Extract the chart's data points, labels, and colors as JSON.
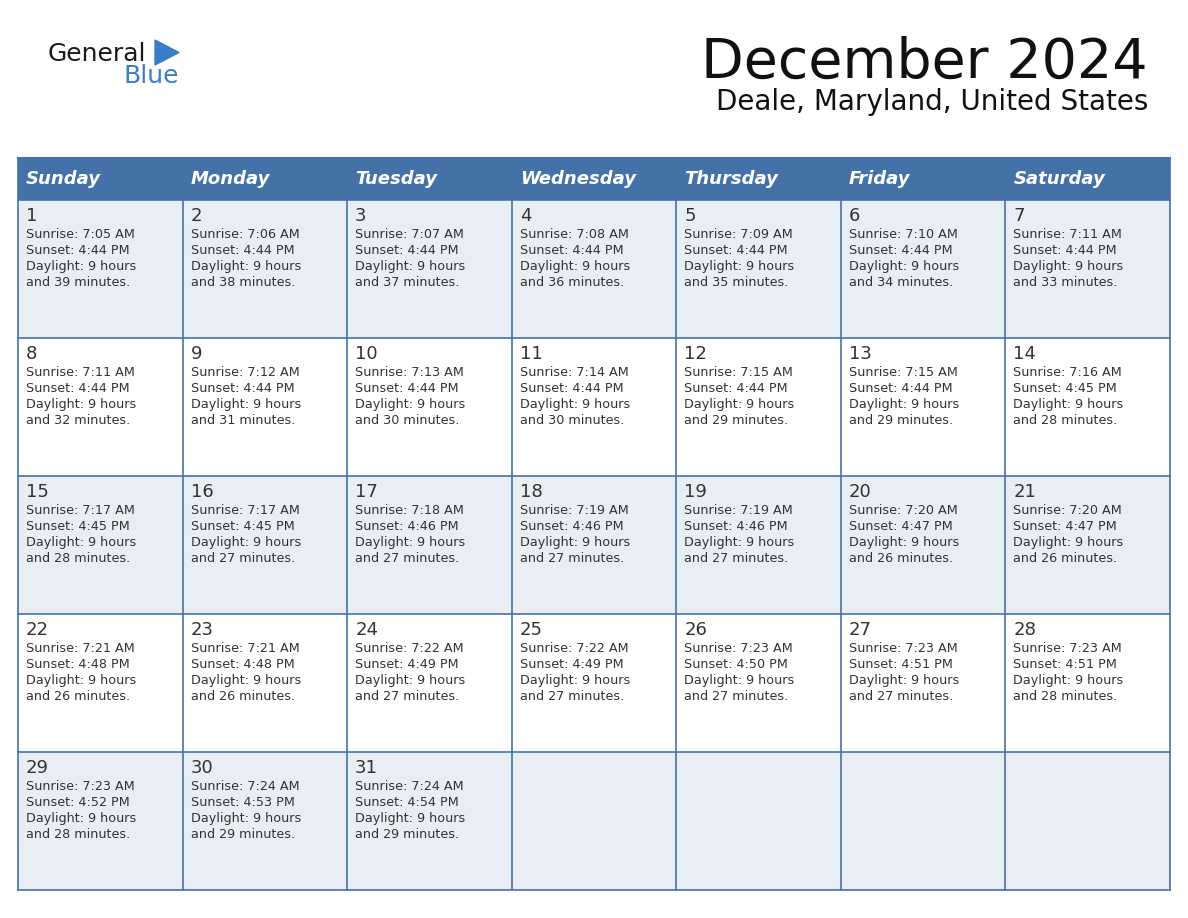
{
  "title": "December 2024",
  "subtitle": "Deale, Maryland, United States",
  "header_bg_color": "#4472a8",
  "header_text_color": "#ffffff",
  "row_bg_color_odd": "#e8eef4",
  "row_bg_color_even": "#ffffff",
  "cell_text_color": "#333333",
  "day_number_color": "#333333",
  "grid_line_color": "#4472a8",
  "days_of_week": [
    "Sunday",
    "Monday",
    "Tuesday",
    "Wednesday",
    "Thursday",
    "Friday",
    "Saturday"
  ],
  "weeks": [
    [
      {
        "day": "1",
        "sunrise": "7:05 AM",
        "sunset": "4:44 PM",
        "daylight_line1": "9 hours",
        "daylight_line2": "and 39 minutes."
      },
      {
        "day": "2",
        "sunrise": "7:06 AM",
        "sunset": "4:44 PM",
        "daylight_line1": "9 hours",
        "daylight_line2": "and 38 minutes."
      },
      {
        "day": "3",
        "sunrise": "7:07 AM",
        "sunset": "4:44 PM",
        "daylight_line1": "9 hours",
        "daylight_line2": "and 37 minutes."
      },
      {
        "day": "4",
        "sunrise": "7:08 AM",
        "sunset": "4:44 PM",
        "daylight_line1": "9 hours",
        "daylight_line2": "and 36 minutes."
      },
      {
        "day": "5",
        "sunrise": "7:09 AM",
        "sunset": "4:44 PM",
        "daylight_line1": "9 hours",
        "daylight_line2": "and 35 minutes."
      },
      {
        "day": "6",
        "sunrise": "7:10 AM",
        "sunset": "4:44 PM",
        "daylight_line1": "9 hours",
        "daylight_line2": "and 34 minutes."
      },
      {
        "day": "7",
        "sunrise": "7:11 AM",
        "sunset": "4:44 PM",
        "daylight_line1": "9 hours",
        "daylight_line2": "and 33 minutes."
      }
    ],
    [
      {
        "day": "8",
        "sunrise": "7:11 AM",
        "sunset": "4:44 PM",
        "daylight_line1": "9 hours",
        "daylight_line2": "and 32 minutes."
      },
      {
        "day": "9",
        "sunrise": "7:12 AM",
        "sunset": "4:44 PM",
        "daylight_line1": "9 hours",
        "daylight_line2": "and 31 minutes."
      },
      {
        "day": "10",
        "sunrise": "7:13 AM",
        "sunset": "4:44 PM",
        "daylight_line1": "9 hours",
        "daylight_line2": "and 30 minutes."
      },
      {
        "day": "11",
        "sunrise": "7:14 AM",
        "sunset": "4:44 PM",
        "daylight_line1": "9 hours",
        "daylight_line2": "and 30 minutes."
      },
      {
        "day": "12",
        "sunrise": "7:15 AM",
        "sunset": "4:44 PM",
        "daylight_line1": "9 hours",
        "daylight_line2": "and 29 minutes."
      },
      {
        "day": "13",
        "sunrise": "7:15 AM",
        "sunset": "4:44 PM",
        "daylight_line1": "9 hours",
        "daylight_line2": "and 29 minutes."
      },
      {
        "day": "14",
        "sunrise": "7:16 AM",
        "sunset": "4:45 PM",
        "daylight_line1": "9 hours",
        "daylight_line2": "and 28 minutes."
      }
    ],
    [
      {
        "day": "15",
        "sunrise": "7:17 AM",
        "sunset": "4:45 PM",
        "daylight_line1": "9 hours",
        "daylight_line2": "and 28 minutes."
      },
      {
        "day": "16",
        "sunrise": "7:17 AM",
        "sunset": "4:45 PM",
        "daylight_line1": "9 hours",
        "daylight_line2": "and 27 minutes."
      },
      {
        "day": "17",
        "sunrise": "7:18 AM",
        "sunset": "4:46 PM",
        "daylight_line1": "9 hours",
        "daylight_line2": "and 27 minutes."
      },
      {
        "day": "18",
        "sunrise": "7:19 AM",
        "sunset": "4:46 PM",
        "daylight_line1": "9 hours",
        "daylight_line2": "and 27 minutes."
      },
      {
        "day": "19",
        "sunrise": "7:19 AM",
        "sunset": "4:46 PM",
        "daylight_line1": "9 hours",
        "daylight_line2": "and 27 minutes."
      },
      {
        "day": "20",
        "sunrise": "7:20 AM",
        "sunset": "4:47 PM",
        "daylight_line1": "9 hours",
        "daylight_line2": "and 26 minutes."
      },
      {
        "day": "21",
        "sunrise": "7:20 AM",
        "sunset": "4:47 PM",
        "daylight_line1": "9 hours",
        "daylight_line2": "and 26 minutes."
      }
    ],
    [
      {
        "day": "22",
        "sunrise": "7:21 AM",
        "sunset": "4:48 PM",
        "daylight_line1": "9 hours",
        "daylight_line2": "and 26 minutes."
      },
      {
        "day": "23",
        "sunrise": "7:21 AM",
        "sunset": "4:48 PM",
        "daylight_line1": "9 hours",
        "daylight_line2": "and 26 minutes."
      },
      {
        "day": "24",
        "sunrise": "7:22 AM",
        "sunset": "4:49 PM",
        "daylight_line1": "9 hours",
        "daylight_line2": "and 27 minutes."
      },
      {
        "day": "25",
        "sunrise": "7:22 AM",
        "sunset": "4:49 PM",
        "daylight_line1": "9 hours",
        "daylight_line2": "and 27 minutes."
      },
      {
        "day": "26",
        "sunrise": "7:23 AM",
        "sunset": "4:50 PM",
        "daylight_line1": "9 hours",
        "daylight_line2": "and 27 minutes."
      },
      {
        "day": "27",
        "sunrise": "7:23 AM",
        "sunset": "4:51 PM",
        "daylight_line1": "9 hours",
        "daylight_line2": "and 27 minutes."
      },
      {
        "day": "28",
        "sunrise": "7:23 AM",
        "sunset": "4:51 PM",
        "daylight_line1": "9 hours",
        "daylight_line2": "and 28 minutes."
      }
    ],
    [
      {
        "day": "29",
        "sunrise": "7:23 AM",
        "sunset": "4:52 PM",
        "daylight_line1": "9 hours",
        "daylight_line2": "and 28 minutes."
      },
      {
        "day": "30",
        "sunrise": "7:24 AM",
        "sunset": "4:53 PM",
        "daylight_line1": "9 hours",
        "daylight_line2": "and 29 minutes."
      },
      {
        "day": "31",
        "sunrise": "7:24 AM",
        "sunset": "4:54 PM",
        "daylight_line1": "9 hours",
        "daylight_line2": "and 29 minutes."
      },
      null,
      null,
      null,
      null
    ]
  ],
  "logo_text_general": "General",
  "logo_text_blue": "Blue",
  "logo_color_general": "#1a1a1a",
  "logo_color_blue": "#3a7ec8",
  "logo_triangle_color": "#3a7ec8"
}
